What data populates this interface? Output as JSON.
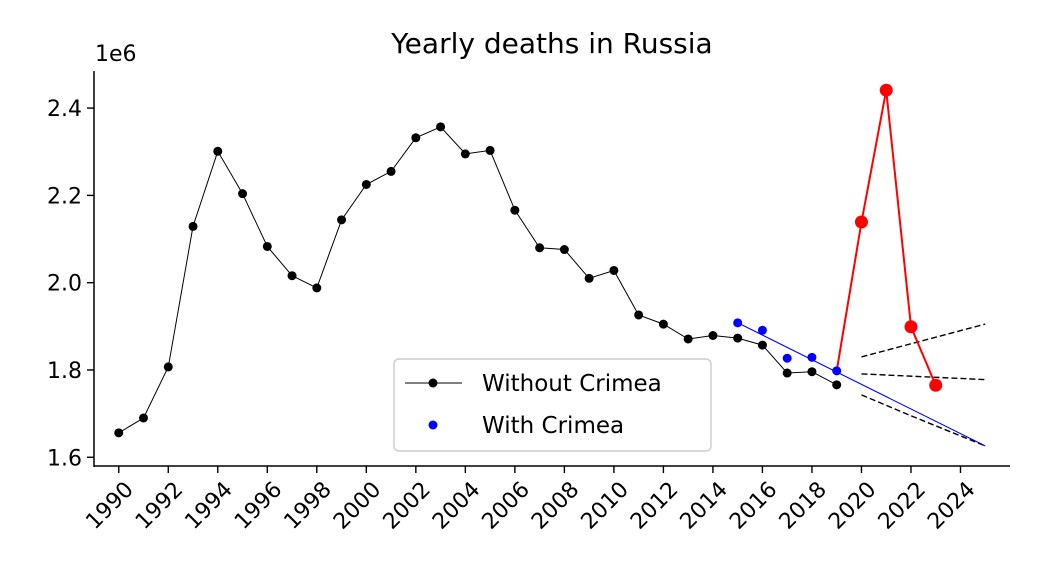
{
  "chart_data": {
    "type": "line",
    "title": "Yearly deaths in Russia",
    "y_offset_label": "1e6",
    "xlim": [
      1989,
      2026
    ],
    "ylim": [
      1.58,
      2.485
    ],
    "x_ticks": [
      1990,
      1992,
      1994,
      1996,
      1998,
      2000,
      2002,
      2004,
      2006,
      2008,
      2010,
      2012,
      2014,
      2016,
      2018,
      2020,
      2022,
      2024
    ],
    "y_ticks": [
      1.6,
      1.8,
      2.0,
      2.2,
      2.4
    ],
    "legend": {
      "placement": "lower-center",
      "entries": [
        {
          "label": "Without Crimea",
          "color": "#000000",
          "style": "line-marker"
        },
        {
          "label": "With Crimea",
          "color": "#0000ff",
          "style": "marker"
        }
      ]
    },
    "series": [
      {
        "name": "Without Crimea",
        "color": "#000000",
        "x": [
          1990,
          1991,
          1992,
          1993,
          1994,
          1995,
          1996,
          1997,
          1998,
          1999,
          2000,
          2001,
          2002,
          2003,
          2004,
          2005,
          2006,
          2007,
          2008,
          2009,
          2010,
          2011,
          2012,
          2013,
          2014,
          2015,
          2016,
          2017,
          2018,
          2019
        ],
        "y": [
          1.656,
          1.69,
          1.807,
          2.129,
          2.301,
          2.204,
          2.083,
          2.016,
          1.988,
          2.144,
          2.225,
          2.255,
          2.332,
          2.357,
          2.295,
          2.303,
          2.166,
          2.08,
          2.076,
          2.01,
          2.028,
          1.926,
          1.905,
          1.871,
          1.879,
          1.873,
          1.857,
          1.793,
          1.796,
          1.766
        ]
      },
      {
        "name": "With Crimea",
        "color": "#0000ff",
        "x": [
          2015,
          2016,
          2017,
          2018,
          2019
        ],
        "y": [
          1.908,
          1.891,
          1.827,
          1.829,
          1.798
        ]
      },
      {
        "color": "#ff0000",
        "x": [
          2019,
          2020,
          2021,
          2022,
          2023
        ],
        "y": [
          1.798,
          2.139,
          2.441,
          1.899,
          1.765
        ]
      },
      {
        "color": "#0000ff",
        "style": "trend-line",
        "x": [
          2015,
          2025
        ],
        "y": [
          1.908,
          1.626
        ]
      },
      {
        "color": "#000000",
        "style": "dashed-projection",
        "x": [
          2020,
          2025
        ],
        "y": [
          1.83,
          1.905
        ]
      },
      {
        "color": "#000000",
        "style": "dashed-projection",
        "x": [
          2020,
          2025
        ],
        "y": [
          1.791,
          1.778
        ]
      },
      {
        "color": "#000000",
        "style": "dashed-projection",
        "x": [
          2020,
          2022,
          2025
        ],
        "y": [
          1.743,
          1.695,
          1.626
        ]
      }
    ]
  }
}
